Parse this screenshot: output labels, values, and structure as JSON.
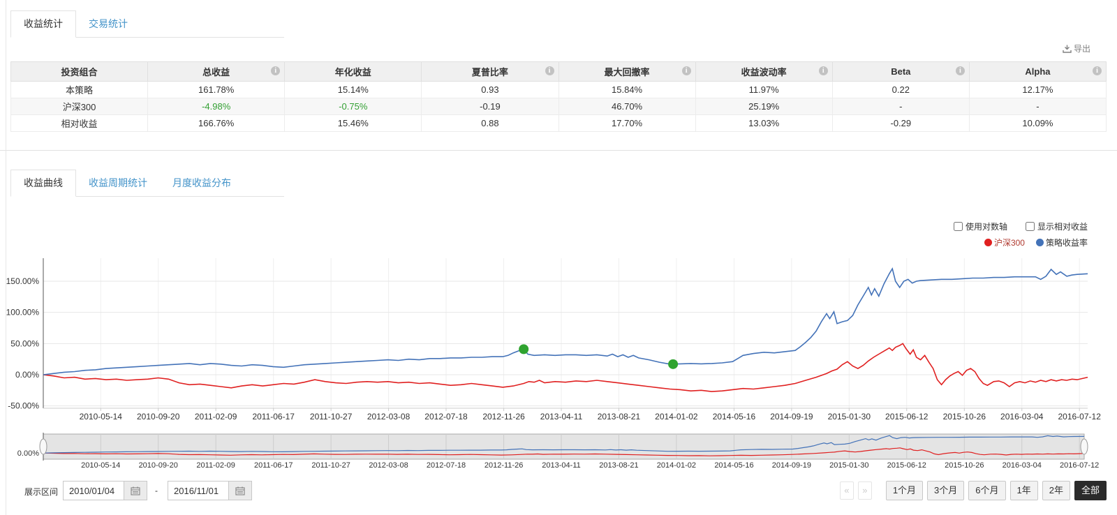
{
  "tabs_top": [
    {
      "name": "tab-income-stats",
      "label": "收益统计",
      "active": true
    },
    {
      "name": "tab-trade-stats",
      "label": "交易统计",
      "active": false
    }
  ],
  "export_label": "导出",
  "stats_table": {
    "headers": [
      {
        "label": "投资组合",
        "info": false
      },
      {
        "label": "总收益",
        "info": true
      },
      {
        "label": "年化收益",
        "info": false
      },
      {
        "label": "夏普比率",
        "info": true
      },
      {
        "label": "最大回撤率",
        "info": true
      },
      {
        "label": "收益波动率",
        "info": true
      },
      {
        "label": "Beta",
        "info": true
      },
      {
        "label": "Alpha",
        "info": true
      }
    ],
    "rows": [
      {
        "cells": [
          "本策略",
          "161.78%",
          "15.14%",
          "0.93",
          "15.84%",
          "11.97%",
          "0.22",
          "12.17%"
        ],
        "green_cols": [],
        "zebra": false
      },
      {
        "cells": [
          "沪深300",
          "-4.98%",
          "-0.75%",
          "-0.19",
          "46.70%",
          "25.19%",
          "-",
          "-"
        ],
        "green_cols": [
          1,
          2
        ],
        "zebra": true
      },
      {
        "cells": [
          "相对收益",
          "166.76%",
          "15.46%",
          "0.88",
          "17.70%",
          "13.03%",
          "-0.29",
          "10.09%"
        ],
        "green_cols": [],
        "zebra": false
      }
    ]
  },
  "tabs_chart": [
    {
      "name": "tab-return-curve",
      "label": "收益曲线",
      "active": true
    },
    {
      "name": "tab-return-period-stats",
      "label": "收益周期统计",
      "active": false
    },
    {
      "name": "tab-monthly-return-dist",
      "label": "月度收益分布",
      "active": false
    }
  ],
  "chart_options": {
    "log_axis_label": "使用对数轴",
    "log_axis_checked": false,
    "relative_label": "显示相对收益",
    "relative_checked": false
  },
  "date_range": {
    "label": "展示区间",
    "start": "2010/01/04",
    "separator": "-",
    "end": "2016/11/01"
  },
  "pager": {
    "prev": "«",
    "next": "»"
  },
  "range_buttons": [
    {
      "name": "range-1m",
      "label": "1个月",
      "active": false
    },
    {
      "name": "range-3m",
      "label": "3个月",
      "active": false
    },
    {
      "name": "range-6m",
      "label": "6个月",
      "active": false
    },
    {
      "name": "range-1y",
      "label": "1年",
      "active": false
    },
    {
      "name": "range-2y",
      "label": "2年",
      "active": false
    },
    {
      "name": "range-all",
      "label": "全部",
      "active": true
    }
  ],
  "chart_data": {
    "type": "line",
    "title": "",
    "xlabel": "",
    "ylabel": "",
    "grid": true,
    "legend_position": "top-right",
    "ylim": [
      -53,
      187
    ],
    "y_ticks": [
      {
        "label": "150.00%",
        "value": 150
      },
      {
        "label": "100.00%",
        "value": 100
      },
      {
        "label": "50.00%",
        "value": 50
      },
      {
        "label": "0.00%",
        "value": 0
      },
      {
        "label": "-50.00%",
        "value": -50
      }
    ],
    "x_tick_labels": [
      "2010-05-14",
      "2010-09-20",
      "2011-02-09",
      "2011-06-17",
      "2011-10-27",
      "2012-03-08",
      "2012-07-18",
      "2012-11-26",
      "2013-04-11",
      "2013-08-21",
      "2014-01-02",
      "2014-05-16",
      "2014-09-19",
      "2015-01-30",
      "2015-06-12",
      "2015-10-26",
      "2016-03-04",
      "2016-07-12"
    ],
    "x_tick_fracs": [
      5.5,
      11.01,
      16.52,
      22.04,
      27.55,
      33.06,
      38.57,
      44.09,
      49.6,
      55.11,
      60.62,
      66.14,
      71.65,
      77.16,
      82.67,
      88.19,
      93.7,
      99.21
    ],
    "navigator": {
      "ylim": [
        -60,
        185
      ],
      "zero_label": "0.00%"
    },
    "series": [
      {
        "name": "沪深300",
        "color": "#e02020",
        "text_color": "#b03a30",
        "points": [
          [
            0,
            0
          ],
          [
            1,
            -2
          ],
          [
            2,
            -5
          ],
          [
            3,
            -4
          ],
          [
            4,
            -7
          ],
          [
            5,
            -6
          ],
          [
            6,
            -8
          ],
          [
            7,
            -7
          ],
          [
            8,
            -9
          ],
          [
            9,
            -8
          ],
          [
            10,
            -7
          ],
          [
            11,
            -5
          ],
          [
            12,
            -7
          ],
          [
            13,
            -13
          ],
          [
            14,
            -16
          ],
          [
            15,
            -15
          ],
          [
            16,
            -17
          ],
          [
            17,
            -19
          ],
          [
            18,
            -21
          ],
          [
            19,
            -18
          ],
          [
            20,
            -16
          ],
          [
            21,
            -18
          ],
          [
            22,
            -16
          ],
          [
            23,
            -14
          ],
          [
            24,
            -15
          ],
          [
            25,
            -12
          ],
          [
            26,
            -8
          ],
          [
            27,
            -11
          ],
          [
            28,
            -13
          ],
          [
            29,
            -14
          ],
          [
            30,
            -12
          ],
          [
            31,
            -11
          ],
          [
            32,
            -12
          ],
          [
            33,
            -11
          ],
          [
            34,
            -13
          ],
          [
            35,
            -12
          ],
          [
            36,
            -14
          ],
          [
            37,
            -13
          ],
          [
            38,
            -15
          ],
          [
            39,
            -17
          ],
          [
            40,
            -16
          ],
          [
            41,
            -14
          ],
          [
            42,
            -16
          ],
          [
            43,
            -18
          ],
          [
            44,
            -20
          ],
          [
            45,
            -18
          ],
          [
            46,
            -14
          ],
          [
            46.5,
            -11
          ],
          [
            47,
            -12
          ],
          [
            47.5,
            -9
          ],
          [
            48,
            -13
          ],
          [
            49,
            -11
          ],
          [
            50,
            -12
          ],
          [
            51,
            -10
          ],
          [
            52,
            -11
          ],
          [
            53,
            -9
          ],
          [
            54,
            -11
          ],
          [
            55,
            -13
          ],
          [
            56,
            -15
          ],
          [
            57,
            -17
          ],
          [
            58,
            -19
          ],
          [
            59,
            -21
          ],
          [
            60,
            -23
          ],
          [
            61,
            -24
          ],
          [
            62,
            -26
          ],
          [
            63,
            -25
          ],
          [
            64,
            -27
          ],
          [
            65,
            -26
          ],
          [
            66,
            -24
          ],
          [
            67,
            -22
          ],
          [
            68,
            -23
          ],
          [
            69,
            -21
          ],
          [
            70,
            -19
          ],
          [
            71,
            -17
          ],
          [
            72,
            -14
          ],
          [
            73,
            -9
          ],
          [
            74,
            -4
          ],
          [
            75,
            2
          ],
          [
            75.5,
            6
          ],
          [
            76,
            9
          ],
          [
            76.5,
            16
          ],
          [
            77,
            21
          ],
          [
            77.5,
            14
          ],
          [
            78,
            10
          ],
          [
            78.5,
            15
          ],
          [
            79,
            22
          ],
          [
            79.5,
            28
          ],
          [
            80,
            33
          ],
          [
            80.5,
            38
          ],
          [
            81,
            43
          ],
          [
            81.3,
            39
          ],
          [
            81.6,
            44
          ],
          [
            82,
            47
          ],
          [
            82.3,
            50
          ],
          [
            82.6,
            42
          ],
          [
            83,
            33
          ],
          [
            83.3,
            40
          ],
          [
            83.6,
            28
          ],
          [
            84,
            24
          ],
          [
            84.4,
            31
          ],
          [
            84.8,
            20
          ],
          [
            85.2,
            10
          ],
          [
            85.6,
            -8
          ],
          [
            86,
            -16
          ],
          [
            86.4,
            -8
          ],
          [
            86.8,
            -2
          ],
          [
            87.2,
            2
          ],
          [
            87.6,
            5
          ],
          [
            88,
            -1
          ],
          [
            88.4,
            7
          ],
          [
            88.8,
            10
          ],
          [
            89.2,
            5
          ],
          [
            89.6,
            -6
          ],
          [
            90,
            -14
          ],
          [
            90.4,
            -17
          ],
          [
            91,
            -11
          ],
          [
            91.5,
            -10
          ],
          [
            92,
            -13
          ],
          [
            92.5,
            -19
          ],
          [
            93,
            -13
          ],
          [
            93.5,
            -11
          ],
          [
            94,
            -13
          ],
          [
            94.5,
            -10
          ],
          [
            95,
            -12
          ],
          [
            95.5,
            -9
          ],
          [
            96,
            -11
          ],
          [
            96.5,
            -8
          ],
          [
            97,
            -10
          ],
          [
            97.5,
            -8
          ],
          [
            98,
            -9
          ],
          [
            98.5,
            -7
          ],
          [
            99,
            -8
          ],
          [
            99.5,
            -6
          ],
          [
            100,
            -4
          ]
        ]
      },
      {
        "name": "策略收益率",
        "color": "#4372b8",
        "text_color": "#333333",
        "points": [
          [
            0,
            0
          ],
          [
            1,
            2
          ],
          [
            2,
            4
          ],
          [
            3,
            5
          ],
          [
            4,
            7
          ],
          [
            5,
            8
          ],
          [
            6,
            10
          ],
          [
            7,
            11
          ],
          [
            8,
            12
          ],
          [
            9,
            13
          ],
          [
            10,
            14
          ],
          [
            11,
            15
          ],
          [
            12,
            16
          ],
          [
            13,
            17
          ],
          [
            14,
            18
          ],
          [
            15,
            16
          ],
          [
            16,
            18
          ],
          [
            17,
            17
          ],
          [
            18,
            15
          ],
          [
            19,
            14
          ],
          [
            20,
            16
          ],
          [
            21,
            15
          ],
          [
            22,
            13
          ],
          [
            23,
            12
          ],
          [
            24,
            14
          ],
          [
            25,
            16
          ],
          [
            26,
            17
          ],
          [
            27,
            18
          ],
          [
            28,
            19
          ],
          [
            29,
            20
          ],
          [
            30,
            21
          ],
          [
            31,
            22
          ],
          [
            32,
            23
          ],
          [
            33,
            24
          ],
          [
            34,
            23
          ],
          [
            35,
            25
          ],
          [
            36,
            24
          ],
          [
            37,
            26
          ],
          [
            38,
            26
          ],
          [
            39,
            27
          ],
          [
            40,
            27
          ],
          [
            41,
            28
          ],
          [
            42,
            28
          ],
          [
            43,
            29
          ],
          [
            44,
            29
          ],
          [
            44.5,
            31
          ],
          [
            45,
            35
          ],
          [
            45.6,
            39
          ],
          [
            46,
            41
          ],
          [
            46.4,
            33
          ],
          [
            47,
            31
          ],
          [
            48,
            32
          ],
          [
            49,
            31
          ],
          [
            50,
            32
          ],
          [
            51,
            32
          ],
          [
            52,
            31
          ],
          [
            53,
            32
          ],
          [
            54,
            30
          ],
          [
            54.5,
            33
          ],
          [
            55,
            29
          ],
          [
            55.5,
            32
          ],
          [
            56,
            28
          ],
          [
            56.5,
            31
          ],
          [
            57,
            27
          ],
          [
            58,
            24
          ],
          [
            59,
            20
          ],
          [
            60,
            17
          ],
          [
            61,
            17.5
          ],
          [
            62,
            18
          ],
          [
            63,
            17.5
          ],
          [
            64,
            18
          ],
          [
            65,
            19
          ],
          [
            66,
            21
          ],
          [
            66.6,
            27
          ],
          [
            67,
            31
          ],
          [
            68,
            34
          ],
          [
            69,
            36
          ],
          [
            70,
            35
          ],
          [
            71,
            37
          ],
          [
            72,
            39
          ],
          [
            72.5,
            45
          ],
          [
            73,
            52
          ],
          [
            73.5,
            60
          ],
          [
            74,
            70
          ],
          [
            74.5,
            85
          ],
          [
            75,
            98
          ],
          [
            75.3,
            90
          ],
          [
            75.7,
            101
          ],
          [
            76,
            82
          ],
          [
            76.5,
            85
          ],
          [
            77,
            87
          ],
          [
            77.5,
            95
          ],
          [
            78,
            112
          ],
          [
            78.5,
            126
          ],
          [
            79,
            140
          ],
          [
            79.3,
            128
          ],
          [
            79.6,
            138
          ],
          [
            80,
            126
          ],
          [
            80.5,
            146
          ],
          [
            81,
            162
          ],
          [
            81.3,
            170
          ],
          [
            81.6,
            150
          ],
          [
            82,
            140
          ],
          [
            82.4,
            150
          ],
          [
            82.8,
            153
          ],
          [
            83.2,
            147
          ],
          [
            83.6,
            150
          ],
          [
            84,
            151
          ],
          [
            85,
            152
          ],
          [
            86,
            153
          ],
          [
            87,
            153
          ],
          [
            88,
            154
          ],
          [
            89,
            155
          ],
          [
            90,
            155
          ],
          [
            91,
            156
          ],
          [
            92,
            156
          ],
          [
            93,
            157
          ],
          [
            94,
            157
          ],
          [
            95,
            157
          ],
          [
            95.5,
            153
          ],
          [
            96,
            158
          ],
          [
            96.5,
            169
          ],
          [
            97,
            161
          ],
          [
            97.4,
            165
          ],
          [
            98,
            158
          ],
          [
            98.5,
            160
          ],
          [
            99,
            161
          ],
          [
            100,
            162
          ]
        ]
      }
    ],
    "markers": [
      {
        "x": 46,
        "y": 41,
        "color": "#2fa32f"
      },
      {
        "x": 60.3,
        "y": 17,
        "color": "#2fa32f"
      }
    ]
  }
}
